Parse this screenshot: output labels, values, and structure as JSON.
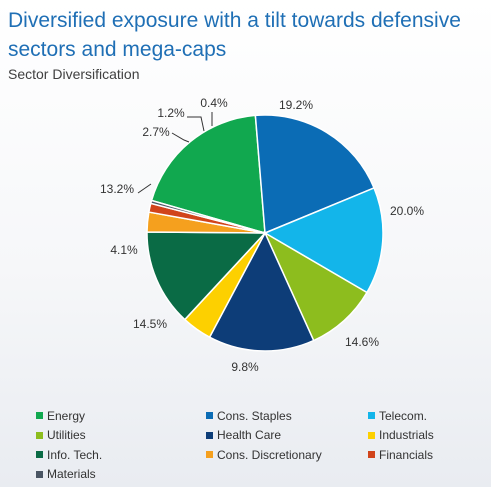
{
  "title": "Diversified exposure with a tilt towards defensive sectors and mega-caps",
  "subtitle": "Sector Diversification",
  "chart_data": {
    "type": "pie",
    "title": "Sector Diversification",
    "legend_position": "bottom",
    "slices": [
      {
        "name": "Energy",
        "value": 19.2,
        "label": "19.2%",
        "color": "#11a84f"
      },
      {
        "name": "Cons. Staples",
        "value": 20.0,
        "label": "20.0%",
        "color": "#0b6cb5"
      },
      {
        "name": "Telecom.",
        "value": 14.6,
        "label": "14.6%",
        "color": "#13b5ea"
      },
      {
        "name": "Utilities",
        "value": 9.8,
        "label": "9.8%",
        "color": "#8dbd1e"
      },
      {
        "name": "Health Care",
        "value": 14.5,
        "label": "14.5%",
        "color": "#0d3d78"
      },
      {
        "name": "Industrials",
        "value": 4.1,
        "label": "4.1%",
        "color": "#fdd000"
      },
      {
        "name": "Info. Tech.",
        "value": 13.2,
        "label": "13.2%",
        "color": "#0a6b45"
      },
      {
        "name": "Cons. Discretionary",
        "value": 2.7,
        "label": "2.7%",
        "color": "#f5a01e"
      },
      {
        "name": "Financials",
        "value": 1.2,
        "label": "1.2%",
        "color": "#d1441b"
      },
      {
        "name": "Materials",
        "value": 0.4,
        "label": "0.4%",
        "color": "#4a5563"
      }
    ]
  }
}
